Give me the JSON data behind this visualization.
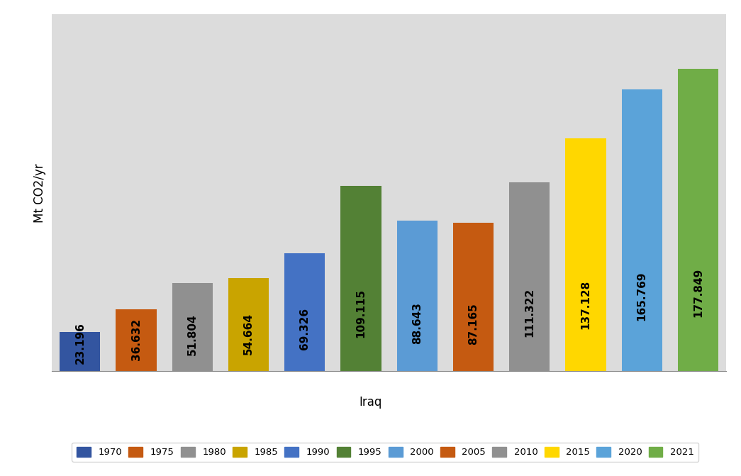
{
  "categories": [
    "1970",
    "1975",
    "1980",
    "1985",
    "1990",
    "1995",
    "2000",
    "2005",
    "2010",
    "2015",
    "2020",
    "2021"
  ],
  "values": [
    23.196,
    36.632,
    51.804,
    54.664,
    69.326,
    109.115,
    88.643,
    87.165,
    111.322,
    137.128,
    165.769,
    177.849
  ],
  "bar_colors": [
    "#3355A0",
    "#C55A11",
    "#909090",
    "#C9A400",
    "#4472C4",
    "#538135",
    "#5B9BD5",
    "#C55A11",
    "#909090",
    "#FFD700",
    "#5BA3D9",
    "#70AD47"
  ],
  "xlabel": "Iraq",
  "ylabel": "Mt CO2/yr",
  "ylim": [
    0,
    210
  ],
  "plot_bg_color": "#DCDCDC",
  "fig_bg_color": "#FFFFFF",
  "label_fontsize": 11,
  "axis_label_fontsize": 12,
  "legend_years": [
    "1970",
    "1975",
    "1980",
    "1985",
    "1990",
    "1995",
    "2000",
    "2005",
    "2010",
    "2015",
    "2020",
    "2021"
  ],
  "legend_colors": [
    "#3355A0",
    "#C55A11",
    "#909090",
    "#C9A400",
    "#4472C4",
    "#538135",
    "#5B9BD5",
    "#C55A11",
    "#909090",
    "#FFD700",
    "#5BA3D9",
    "#70AD47"
  ]
}
